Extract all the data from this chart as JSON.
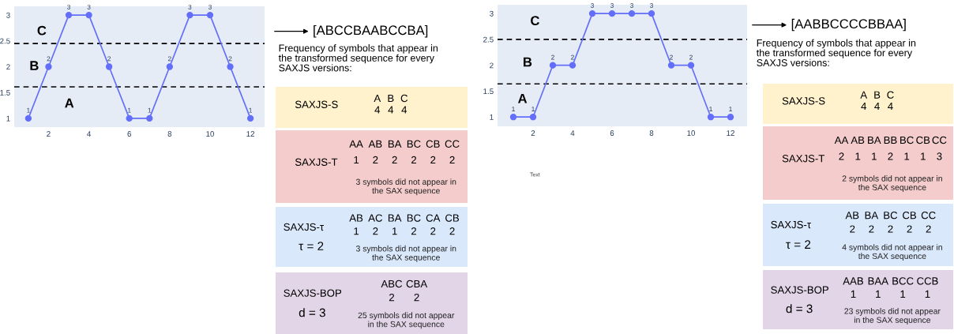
{
  "chart_data": [
    {
      "type": "line",
      "x": [
        1,
        2,
        3,
        4,
        5,
        6,
        7,
        8,
        9,
        10,
        11,
        12
      ],
      "series": [
        {
          "color": "#636efa",
          "values": [
            1,
            2,
            3,
            3,
            2,
            1,
            1,
            2,
            3,
            3,
            2,
            1
          ]
        }
      ],
      "xlim": [
        0.3,
        12.7
      ],
      "ylim": [
        0.83,
        3.17
      ],
      "xticks": [
        2,
        4,
        6,
        8,
        10,
        12
      ],
      "yticks": [
        1,
        1.5,
        2,
        2.5,
        3
      ],
      "marker": "circle",
      "line_style": "solid",
      "data_labels": true,
      "grid": false,
      "ref_lines": [
        {
          "axis": "y",
          "value": 2.45,
          "color": "#000000",
          "line_style": "dashed"
        },
        {
          "axis": "y",
          "value": 1.61,
          "color": "#000000",
          "line_style": "dashed"
        }
      ],
      "annotations": [
        "C",
        "B",
        "A"
      ]
    },
    {
      "type": "other",
      "title": "[ABCCBAABCCBA]",
      "annotations": [
        "Frequency of symbols that appear in the transformed sequence for every SAXJS versions:"
      ]
    },
    {
      "type": "other",
      "title": "SAXJS-S",
      "categories": [
        "A",
        "B",
        "C"
      ],
      "series": [
        {
          "color": "#fff2cc",
          "values": [
            4,
            4,
            4
          ]
        }
      ],
      "data_labels": true
    },
    {
      "type": "other",
      "title": "SAXJS-T",
      "categories": [
        "AA",
        "AB",
        "BA",
        "BC",
        "CB",
        "CC"
      ],
      "series": [
        {
          "color": "#f4cccc",
          "values": [
            1,
            2,
            2,
            2,
            2,
            2
          ]
        }
      ],
      "data_labels": true,
      "annotations": [
        "3 symbols did not appear in the SAX sequence"
      ]
    },
    {
      "type": "other",
      "title": "SAXJS-τ",
      "subtitle": "τ = 2",
      "categories": [
        "AB",
        "AC",
        "BA",
        "BC",
        "CA",
        "CB"
      ],
      "series": [
        {
          "color": "#dae8fc",
          "values": [
            1,
            2,
            1,
            2,
            2,
            2
          ]
        }
      ],
      "data_labels": true,
      "annotations": [
        "3 symbols did not appear in the SAX sequence"
      ]
    },
    {
      "type": "other",
      "title": "SAXJS-BOP",
      "subtitle": "d = 3",
      "categories": [
        "ABC",
        "CBA"
      ],
      "series": [
        {
          "color": "#e1d5e7",
          "values": [
            2,
            2
          ]
        }
      ],
      "data_labels": true,
      "annotations": [
        "25 symbols did not appear in the SAX sequence"
      ]
    },
    {
      "type": "line",
      "x": [
        1,
        2,
        3,
        4,
        5,
        6,
        7,
        8,
        9,
        10,
        11,
        12
      ],
      "series": [
        {
          "color": "#636efa",
          "values": [
            1,
            1,
            2,
            2,
            3,
            3,
            3,
            3,
            2,
            2,
            1,
            1
          ]
        }
      ],
      "xlim": [
        0.2,
        12.84
      ],
      "ylim": [
        0.82,
        3.17
      ],
      "xticks": [
        2,
        4,
        6,
        8,
        10,
        12
      ],
      "yticks": [
        1,
        1.5,
        2,
        2.5,
        3
      ],
      "marker": "circle",
      "line_style": "solid",
      "data_labels": true,
      "grid": false,
      "ref_lines": [
        {
          "axis": "y",
          "value": 2.5,
          "color": "#000000",
          "line_style": "dashed"
        },
        {
          "axis": "y",
          "value": 1.64,
          "color": "#000000",
          "line_style": "dashed"
        }
      ],
      "annotations": [
        "C",
        "B",
        "A",
        "Text"
      ]
    },
    {
      "type": "other",
      "title": "[AABBCCCCBBAA]",
      "annotations": [
        "Frequency of symbols that appear in the transformed sequence for every SAXJS versions:"
      ]
    },
    {
      "type": "other",
      "title": "SAXJS-S",
      "categories": [
        "A",
        "B",
        "C"
      ],
      "series": [
        {
          "color": "#fff2cc",
          "values": [
            4,
            4,
            4
          ]
        }
      ],
      "data_labels": true
    },
    {
      "type": "other",
      "title": "SAXJS-T",
      "categories": [
        "AA",
        "AB",
        "BA",
        "BB",
        "BC",
        "CB",
        "CC"
      ],
      "series": [
        {
          "color": "#f4cccc",
          "values": [
            2,
            1,
            1,
            2,
            1,
            1,
            3
          ]
        }
      ],
      "data_labels": true,
      "annotations": [
        "2 symbols did not appear in the SAX sequence"
      ]
    },
    {
      "type": "other",
      "title": "SAXJS-τ",
      "subtitle": "τ = 2",
      "categories": [
        "AB",
        "BA",
        "BC",
        "CB",
        "CC"
      ],
      "series": [
        {
          "color": "#dae8fc",
          "values": [
            2,
            2,
            2,
            2,
            2
          ]
        }
      ],
      "data_labels": true,
      "annotations": [
        "4 symbols did not appear in the SAX sequence"
      ]
    },
    {
      "type": "other",
      "title": "SAXJS-BOP",
      "subtitle": "d = 3",
      "categories": [
        "AAB",
        "BAA",
        "BCC",
        "CCB"
      ],
      "series": [
        {
          "color": "#e1d5e7",
          "values": [
            1,
            1,
            1,
            1
          ]
        }
      ],
      "data_labels": true,
      "annotations": [
        "23 symbols did not appear in the SAX sequence"
      ]
    }
  ]
}
